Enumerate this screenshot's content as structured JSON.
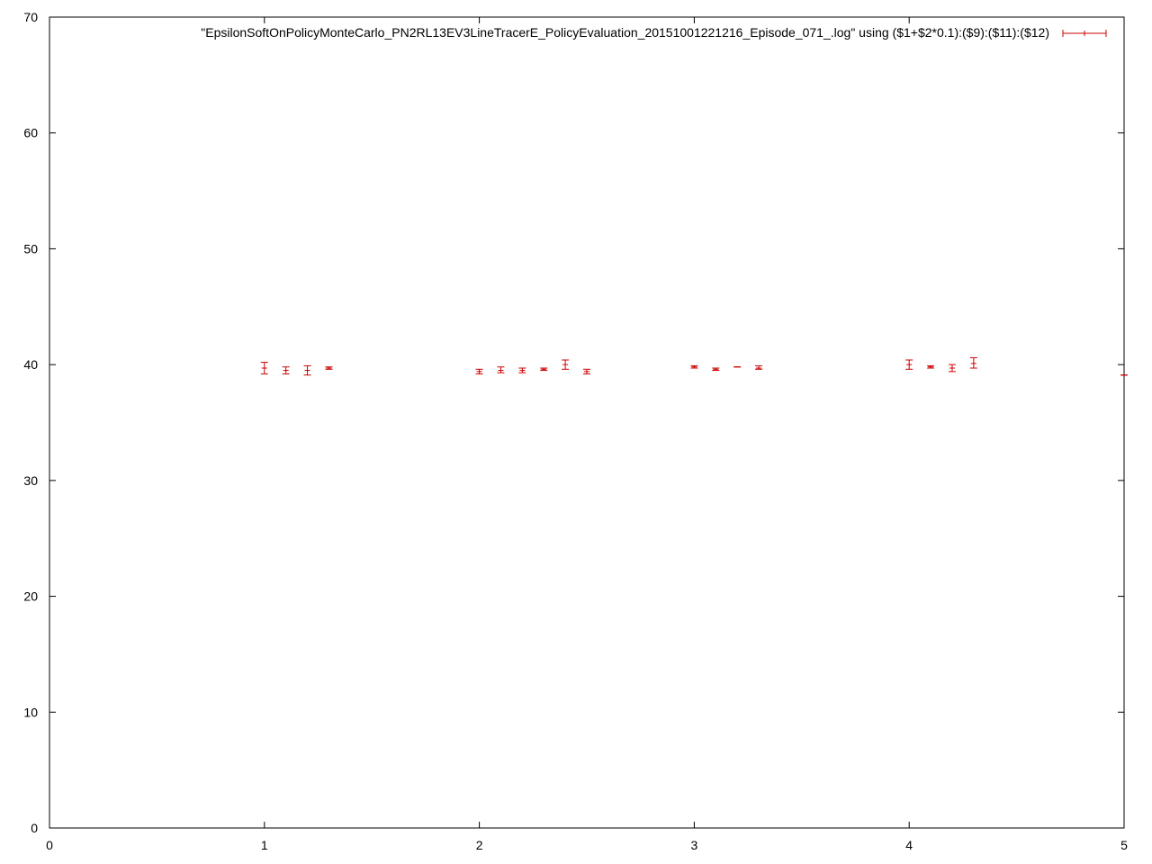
{
  "chart_data": {
    "type": "scatter",
    "subtype": "errorbars",
    "title": "",
    "xlabel": "",
    "ylabel": "",
    "xlim": [
      0,
      5
    ],
    "ylim": [
      0,
      70
    ],
    "x_ticks": [
      "0",
      "1",
      "2",
      "3",
      "4",
      "5"
    ],
    "y_ticks": [
      "0",
      "10",
      "20",
      "30",
      "40",
      "50",
      "60",
      "70"
    ],
    "grid": false,
    "legend_position": "top-right",
    "series": [
      {
        "name": "\"EpsilonSoftOnPolicyMonteCarlo_PN2RL13EV3LineTracerE_PolicyEvaluation_20151001221216_Episode_071_.log\" using ($1+$2*0.1):($9):($11):($12)",
        "color": "#cc0000",
        "points": [
          {
            "x": 1.0,
            "y": 39.7,
            "ylow": 39.2,
            "yhigh": 40.2
          },
          {
            "x": 1.1,
            "y": 39.5,
            "ylow": 39.2,
            "yhigh": 39.8
          },
          {
            "x": 1.2,
            "y": 39.5,
            "ylow": 39.1,
            "yhigh": 39.9
          },
          {
            "x": 1.3,
            "y": 39.7,
            "ylow": 39.6,
            "yhigh": 39.8
          },
          {
            "x": 2.0,
            "y": 39.4,
            "ylow": 39.2,
            "yhigh": 39.6
          },
          {
            "x": 2.1,
            "y": 39.5,
            "ylow": 39.3,
            "yhigh": 39.8
          },
          {
            "x": 2.2,
            "y": 39.5,
            "ylow": 39.3,
            "yhigh": 39.7
          },
          {
            "x": 2.3,
            "y": 39.6,
            "ylow": 39.5,
            "yhigh": 39.7
          },
          {
            "x": 2.4,
            "y": 40.0,
            "ylow": 39.6,
            "yhigh": 40.4
          },
          {
            "x": 2.5,
            "y": 39.4,
            "ylow": 39.2,
            "yhigh": 39.6
          },
          {
            "x": 3.0,
            "y": 39.8,
            "ylow": 39.7,
            "yhigh": 39.9
          },
          {
            "x": 3.1,
            "y": 39.6,
            "ylow": 39.5,
            "yhigh": 39.7
          },
          {
            "x": 3.2,
            "y": 39.8,
            "ylow": 39.8,
            "yhigh": 39.8
          },
          {
            "x": 3.3,
            "y": 39.7,
            "ylow": 39.6,
            "yhigh": 39.9
          },
          {
            "x": 4.0,
            "y": 40.0,
            "ylow": 39.6,
            "yhigh": 40.4
          },
          {
            "x": 4.1,
            "y": 39.8,
            "ylow": 39.7,
            "yhigh": 39.9
          },
          {
            "x": 4.2,
            "y": 39.7,
            "ylow": 39.4,
            "yhigh": 40.0
          },
          {
            "x": 4.3,
            "y": 40.1,
            "ylow": 39.7,
            "yhigh": 40.6
          },
          {
            "x": 5.0,
            "y": 39.1,
            "ylow": 39.1,
            "yhigh": 39.1
          }
        ]
      }
    ]
  }
}
